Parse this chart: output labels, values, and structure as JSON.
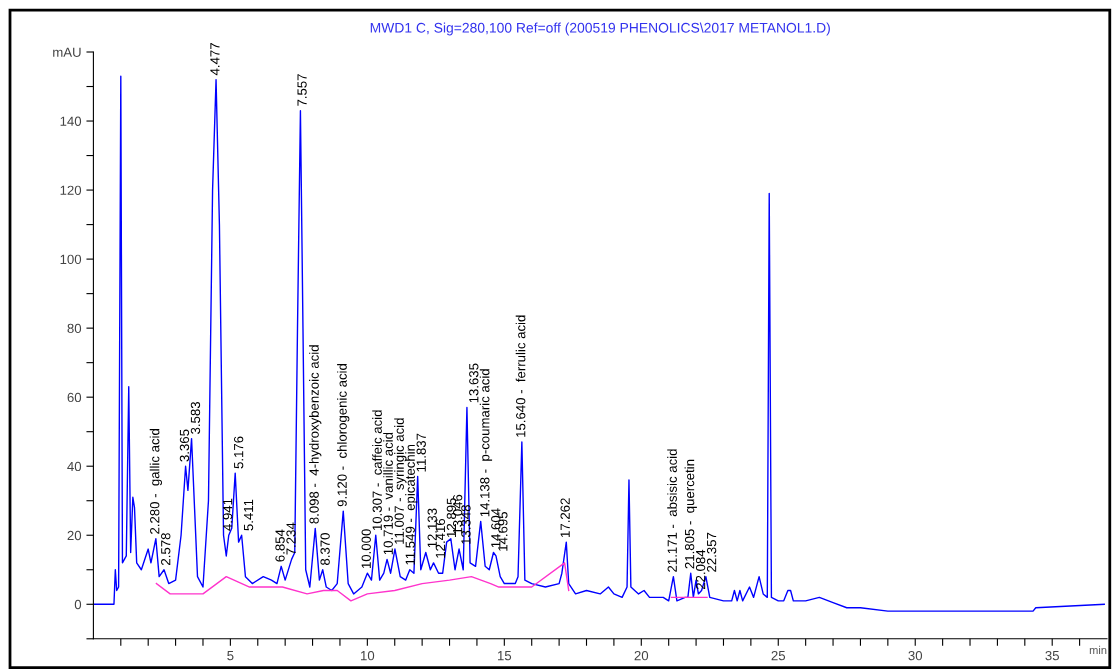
{
  "chart_data": {
    "type": "line",
    "title": "MWD1 C, Sig=280,100 Ref=off (200519 PHENOLICS\\2017 METANOL1.D)",
    "xlabel": "min",
    "xlim": [
      0,
      37
    ],
    "ylim": [
      -10,
      160
    ],
    "xticks": [
      {
        "value": 1,
        "label": null
      },
      {
        "value": 2,
        "label": null
      },
      {
        "value": 3,
        "label": null
      },
      {
        "value": 4,
        "label": null
      },
      5,
      {
        "value": 6,
        "label": null
      },
      {
        "value": 7,
        "label": null
      },
      {
        "value": 8,
        "label": null
      },
      {
        "value": 9,
        "label": null
      },
      10,
      {
        "value": 11,
        "label": null
      },
      {
        "value": 12,
        "label": null
      },
      {
        "value": 13,
        "label": null
      },
      {
        "value": 14,
        "label": null
      },
      15,
      {
        "value": 16,
        "label": null
      },
      {
        "value": 17,
        "label": null
      },
      {
        "value": 18,
        "label": null
      },
      {
        "value": 19,
        "label": null
      },
      20,
      {
        "value": 21,
        "label": null
      },
      {
        "value": 22,
        "label": null
      },
      {
        "value": 23,
        "label": null
      },
      {
        "value": 24,
        "label": null
      },
      25,
      {
        "value": 26,
        "label": null
      },
      {
        "value": 27,
        "label": null
      },
      {
        "value": 28,
        "label": null
      },
      {
        "value": 29,
        "label": null
      },
      30,
      {
        "value": 31,
        "label": null
      },
      {
        "value": 32,
        "label": null
      },
      {
        "value": 33,
        "label": null
      },
      {
        "value": 34,
        "label": null
      },
      35,
      {
        "value": 36,
        "label": null
      }
    ],
    "yticks": [
      {
        "value": -10,
        "label": null
      },
      0,
      {
        "value": 10,
        "label": null
      },
      20,
      {
        "value": 30,
        "label": null
      },
      40,
      {
        "value": 50,
        "label": null
      },
      60,
      {
        "value": 70,
        "label": null
      },
      80,
      {
        "value": 90,
        "label": null
      },
      100,
      {
        "value": 110,
        "label": null
      },
      120,
      {
        "value": 130,
        "label": null
      },
      140,
      {
        "value": 150,
        "label": null
      },
      {
        "value": 160,
        "label": "mAU"
      }
    ],
    "grid": false,
    "legend": false,
    "marker": "none",
    "line_style": "solid",
    "series": [
      {
        "color": "#0000ff",
        "x": [
          0,
          0.75,
          0.8,
          0.85,
          0.92,
          1.0,
          1.06,
          1.2,
          1.29,
          1.36,
          1.44,
          1.5,
          1.58,
          1.75,
          2.0,
          2.1,
          2.28,
          2.4,
          2.578,
          2.75,
          3.0,
          3.2,
          3.365,
          3.45,
          3.583,
          3.8,
          4.0,
          4.2,
          4.35,
          4.477,
          4.6,
          4.75,
          4.85,
          4.941,
          5.05,
          5.176,
          5.3,
          5.411,
          5.55,
          5.8,
          6.2,
          6.5,
          6.7,
          6.854,
          7.0,
          7.234,
          7.35,
          7.45,
          7.557,
          7.65,
          7.75,
          7.9,
          8.098,
          8.25,
          8.37,
          8.5,
          8.7,
          8.9,
          9.12,
          9.3,
          9.5,
          9.8,
          10.0,
          10.15,
          10.307,
          10.45,
          10.6,
          10.719,
          10.85,
          11.007,
          11.2,
          11.4,
          11.549,
          11.7,
          11.837,
          11.95,
          12.133,
          12.3,
          12.416,
          12.6,
          12.75,
          12.895,
          13.046,
          13.2,
          13.348,
          13.5,
          13.635,
          13.75,
          13.95,
          14.138,
          14.3,
          14.45,
          14.604,
          14.695,
          14.85,
          15.0,
          15.4,
          15.5,
          15.64,
          15.75,
          16.0,
          16.5,
          17.0,
          17.1,
          17.262,
          17.35,
          17.6,
          18.0,
          18.5,
          18.8,
          19.0,
          19.3,
          19.48,
          19.55,
          19.62,
          19.9,
          20.1,
          20.3,
          20.8,
          21.0,
          21.171,
          21.3,
          21.6,
          21.7,
          21.805,
          21.9,
          22.0,
          22.084,
          22.2,
          22.357,
          22.5,
          23.0,
          23.3,
          23.4,
          23.5,
          23.6,
          23.7,
          23.95,
          24.1,
          24.3,
          24.45,
          24.6,
          24.67,
          24.75,
          25.0,
          25.2,
          25.35,
          25.45,
          25.55,
          26.0,
          26.5,
          27.0,
          27.5,
          28,
          29,
          33,
          34.3,
          34.4,
          36.9
        ],
        "values": [
          0,
          0,
          10,
          4,
          5,
          153,
          12,
          14,
          63,
          15,
          31,
          28,
          12,
          10,
          16,
          12,
          19,
          8,
          10,
          6,
          7,
          20,
          40,
          33,
          48,
          8,
          5,
          30,
          120,
          152,
          110,
          20,
          14,
          20,
          22,
          38,
          18,
          20,
          8,
          6,
          8,
          7,
          6,
          11,
          7,
          13,
          15,
          80,
          143,
          80,
          10,
          5,
          22,
          7,
          10,
          5,
          4,
          6,
          27,
          6,
          3,
          5,
          9,
          7,
          20,
          7,
          9,
          13,
          9,
          16,
          8,
          7,
          10,
          9,
          37,
          10,
          15,
          10,
          12,
          9,
          9,
          18,
          19,
          10,
          16,
          10,
          57,
          12,
          11,
          24,
          11,
          10,
          15,
          14,
          8,
          6,
          6,
          8,
          47,
          7,
          6,
          5,
          6,
          9,
          18,
          6,
          3,
          4,
          3,
          5,
          3,
          2,
          5,
          36,
          5,
          3,
          4,
          2,
          2,
          1,
          8,
          1,
          2,
          2,
          9,
          2,
          7,
          3,
          4,
          8,
          2,
          1,
          1,
          4,
          1,
          4,
          1,
          5,
          2,
          8,
          3,
          2,
          119,
          2,
          1,
          1,
          4,
          4,
          1,
          1,
          2,
          0.5,
          -1,
          -1,
          -2,
          -2,
          -2,
          -1,
          0
        ]
      },
      {
        "color": "#ff33cc",
        "x": [
          2.3,
          2.8,
          4.0,
          4.85,
          5.7,
          6.9,
          7.8,
          8.4,
          8.9,
          9.4,
          10.0,
          11.0,
          12.0,
          13.0,
          13.8,
          14.5,
          14.8,
          15.5,
          16.0,
          17.2,
          17.35,
          19.0,
          21.1,
          22.4
        ],
        "values": [
          6,
          3,
          3,
          8,
          5,
          5,
          3,
          4,
          4,
          1,
          3,
          4,
          6,
          7,
          8,
          6,
          5,
          5,
          5,
          12,
          4,
          null,
          2,
          2
        ]
      }
    ],
    "annotations": [
      {
        "text": "2.280 -  gallic acid",
        "x": 2.28,
        "y": 19
      },
      {
        "text": "2.578",
        "x": 2.578,
        "y": 10
      },
      {
        "text": "3.365",
        "x": 3.365,
        "y": 40
      },
      {
        "text": "3.583",
        "x": 3.583,
        "y": 48
      },
      {
        "text": "4.477",
        "x": 4.477,
        "y": 152
      },
      {
        "text": "4.941",
        "x": 4.941,
        "y": 20
      },
      {
        "text": "5.176",
        "x": 5.176,
        "y": 38
      },
      {
        "text": "5.411",
        "x": 5.411,
        "y": 20
      },
      {
        "text": "6.854",
        "x": 6.854,
        "y": 11
      },
      {
        "text": "7.234",
        "x": 7.234,
        "y": 13
      },
      {
        "text": "7.557",
        "x": 7.557,
        "y": 143
      },
      {
        "text": "8.098 -  4-hydroxybenzoic acid",
        "x": 8.098,
        "y": 22
      },
      {
        "text": "8.370",
        "x": 8.37,
        "y": 10
      },
      {
        "text": "9.120 -  chlorogenic acid",
        "x": 9.12,
        "y": 27
      },
      {
        "text": "10.000",
        "x": 10.0,
        "y": 9
      },
      {
        "text": "10.307 -  caffeic acid",
        "x": 10.307,
        "y": 20
      },
      {
        "text": "10.719 -  vanillic acid",
        "x": 10.719,
        "y": 13
      },
      {
        "text": "11.007 -  syringic acid",
        "x": 11.007,
        "y": 16
      },
      {
        "text": "11.549 -  epicatechin",
        "x": 11.549,
        "y": 10
      },
      {
        "text": "11.837",
        "x": 11.837,
        "y": 37
      },
      {
        "text": "12.133",
        "x": 12.133,
        "y": 15
      },
      {
        "text": "12.416",
        "x": 12.416,
        "y": 12
      },
      {
        "text": "12.895",
        "x": 12.895,
        "y": 18
      },
      {
        "text": "13.046",
        "x": 13.046,
        "y": 19
      },
      {
        "text": "13.348",
        "x": 13.348,
        "y": 16
      },
      {
        "text": "13.635",
        "x": 13.635,
        "y": 57
      },
      {
        "text": "14.138 -  p-coumaric acid",
        "x": 14.138,
        "y": 24
      },
      {
        "text": "14.604",
        "x": 14.604,
        "y": 15
      },
      {
        "text": "14.695",
        "x": 14.695,
        "y": 14
      },
      {
        "text": "15.640 -  ferrulic acid",
        "x": 15.64,
        "y": 47
      },
      {
        "text": "17.262",
        "x": 17.262,
        "y": 18
      },
      {
        "text": "21.171 -  absisic acid",
        "x": 21.171,
        "y": 8
      },
      {
        "text": "21.805 -  quercetin",
        "x": 21.805,
        "y": 9
      },
      {
        "text": "22.084",
        "x": 22.084,
        "y": 3
      },
      {
        "text": "22.357",
        "x": 22.357,
        "y": 8
      }
    ]
  }
}
